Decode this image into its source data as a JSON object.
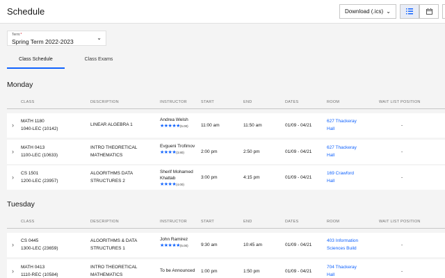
{
  "header": {
    "title": "Schedule",
    "download_label": "Download (.ics)",
    "download_chevron": "⌄"
  },
  "term": {
    "label": "Term:",
    "required": "*",
    "value": "Spring Term 2022-2023"
  },
  "tabs": [
    {
      "label": "Class Schedule",
      "active": true
    },
    {
      "label": "Class Exams",
      "active": false
    }
  ],
  "columns": {
    "class": "CLASS",
    "description": "DESCRIPTION",
    "instructor": "INSTRUCTOR",
    "start": "START",
    "end": "END",
    "dates": "DATES",
    "room": "ROOM",
    "waitlist": "WAIT LIST POSITION"
  },
  "days": [
    {
      "name": "Monday",
      "rows": [
        {
          "class_line1": "MATH 1180",
          "class_line2": "1040-LEC (10142)",
          "desc_line1": "LINEAR ALGEBRA 1",
          "desc_line2": "",
          "instr_line1": "Andrea Welsh",
          "instr_line2": "",
          "stars": "★★★★★",
          "rating": "(5.00)",
          "start": "11:00 am",
          "end": "11:50 am",
          "dates": "01/09 - 04/21",
          "room_line1": "627 Thackeray",
          "room_line2": "Hall",
          "waitlist": "-"
        },
        {
          "class_line1": "MATH 0413",
          "class_line2": "1100-LEC (10633)",
          "desc_line1": "INTRO THEORETICAL",
          "desc_line2": "MATHEMATICS",
          "instr_line1": "Evgueni Trofimov",
          "instr_line2": "",
          "stars": "★★★★",
          "rating": "(3.80)",
          "start": "2:00 pm",
          "end": "2:50 pm",
          "dates": "01/09 - 04/21",
          "room_line1": "627 Thackeray",
          "room_line2": "Hall",
          "waitlist": "-"
        },
        {
          "class_line1": "CS 1501",
          "class_line2": "1200-LEC (23957)",
          "desc_line1": "ALGORITHMS DATA",
          "desc_line2": "STRUCTURES 2",
          "instr_line1": "Sherif Mohamed",
          "instr_line2": "Khattab",
          "stars": "★★★★",
          "rating": "(4.00)",
          "start": "3:00 pm",
          "end": "4:15 pm",
          "dates": "01/09 - 04/21",
          "room_line1": "169 Crawford",
          "room_line2": "Hall",
          "waitlist": "-"
        }
      ]
    },
    {
      "name": "Tuesday",
      "rows": [
        {
          "class_line1": "CS 0445",
          "class_line2": "1300-LEC (23659)",
          "desc_line1": "ALGORITHMS & DATA",
          "desc_line2": "STRUCTURES 1",
          "instr_line1": "John Ramirez",
          "instr_line2": "",
          "stars": "★★★★★",
          "rating": "(5.00)",
          "start": "9:30 am",
          "end": "10:45 am",
          "dates": "01/09 - 04/21",
          "room_line1": "403 Information",
          "room_line2": "Sciences Build",
          "waitlist": "-"
        },
        {
          "class_line1": "MATH 0413",
          "class_line2": "1110-REC (10584)",
          "desc_line1": "INTRO THEORETICAL",
          "desc_line2": "MATHEMATICS",
          "instr_line1": "To be Announced",
          "instr_line2": "",
          "stars": "",
          "rating": "",
          "start": "1:00 pm",
          "end": "1:50 pm",
          "dates": "01/09 - 04/21",
          "room_line1": "704 Thackeray",
          "room_line2": "Hall",
          "waitlist": "-"
        }
      ]
    }
  ]
}
